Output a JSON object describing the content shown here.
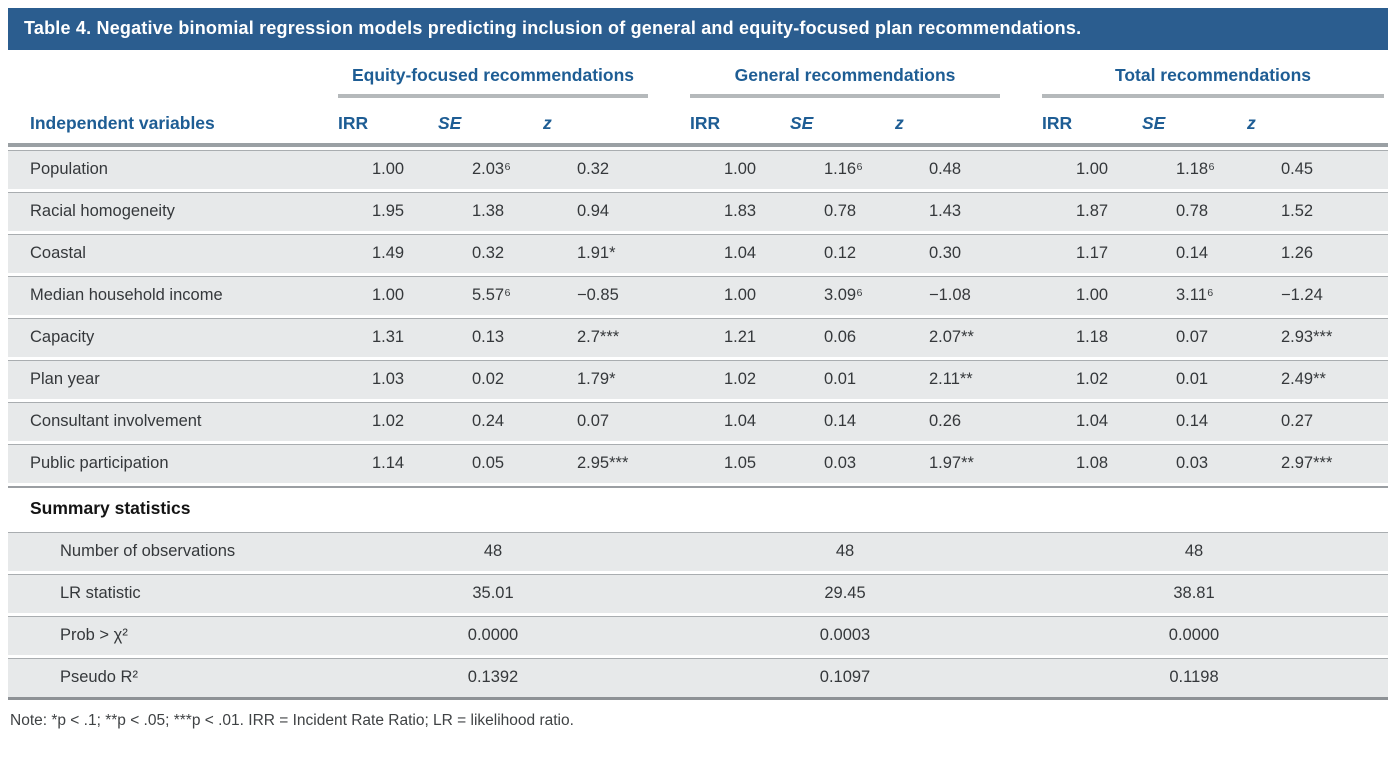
{
  "table": {
    "title": "Table 4. Negative binomial regression models predicting inclusion of general and equity-focused plan recommendations.",
    "stub_header": "Independent variables",
    "groups": [
      {
        "label": "Equity-focused recommendations"
      },
      {
        "label": "General recommendations"
      },
      {
        "label": "Total recommendations"
      }
    ],
    "col_headers": [
      "IRR",
      "SE",
      "z"
    ],
    "rows": [
      {
        "label": "Population",
        "cells": [
          "1.00",
          "2.03⁶",
          "0.32",
          "1.00",
          "1.16⁶",
          "0.48",
          "1.00",
          "1.18⁶",
          "0.45"
        ]
      },
      {
        "label": "Racial homogeneity",
        "cells": [
          "1.95",
          "1.38",
          "0.94",
          "1.83",
          "0.78",
          "1.43",
          "1.87",
          "0.78",
          "1.52"
        ]
      },
      {
        "label": "Coastal",
        "cells": [
          "1.49",
          "0.32",
          "1.91*",
          "1.04",
          "0.12",
          "0.30",
          "1.17",
          "0.14",
          "1.26"
        ]
      },
      {
        "label": "Median household income",
        "cells": [
          "1.00",
          "5.57⁶",
          "−0.85",
          "1.00",
          "3.09⁶",
          "−1.08",
          "1.00",
          "3.11⁶",
          "−1.24"
        ]
      },
      {
        "label": "Capacity",
        "cells": [
          "1.31",
          "0.13",
          "2.7***",
          "1.21",
          "0.06",
          "2.07**",
          "1.18",
          "0.07",
          "2.93***"
        ]
      },
      {
        "label": "Plan year",
        "cells": [
          "1.03",
          "0.02",
          "1.79*",
          "1.02",
          "0.01",
          "2.11**",
          "1.02",
          "0.01",
          "2.49**"
        ]
      },
      {
        "label": "Consultant involvement",
        "cells": [
          "1.02",
          "0.24",
          "0.07",
          "1.04",
          "0.14",
          "0.26",
          "1.04",
          "0.14",
          "0.27"
        ]
      },
      {
        "label": "Public participation",
        "cells": [
          "1.14",
          "0.05",
          "2.95***",
          "1.05",
          "0.03",
          "1.97**",
          "1.08",
          "0.03",
          "2.97***"
        ]
      }
    ],
    "summary": {
      "header": "Summary statistics",
      "rows": [
        {
          "label": "Number of observations",
          "values": [
            "48",
            "48",
            "48"
          ]
        },
        {
          "label": "LR statistic",
          "values": [
            "35.01",
            "29.45",
            "38.81"
          ]
        },
        {
          "label": "Prob > χ²",
          "values": [
            "0.0000",
            "0.0003",
            "0.0000"
          ]
        },
        {
          "label": "Pseudo R²",
          "values": [
            "0.1392",
            "0.1097",
            "0.1198"
          ]
        }
      ]
    },
    "note": "Note: *p < .1; **p < .05; ***p < .01. IRR = Incident Rate Ratio; LR = likelihood ratio.",
    "colors": {
      "title_bar_bg": "#2b5d8f",
      "accent_text": "#1e5d94",
      "row_bg": "#e7e9ea"
    }
  }
}
